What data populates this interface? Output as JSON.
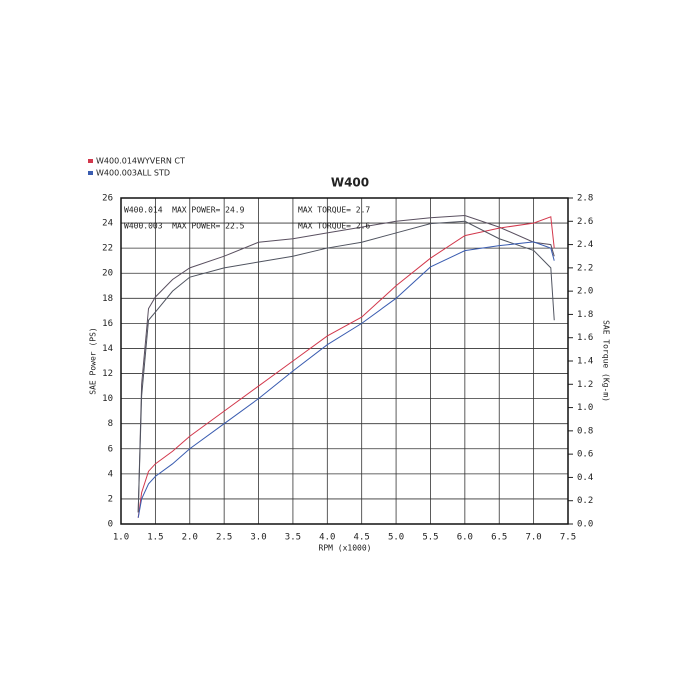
{
  "chart_data": {
    "type": "line",
    "title": "W400",
    "x_label": "RPM (x1000)",
    "y_label": "SAE Power (PS)",
    "y2_label": "SAE Torque (Kg-m)",
    "annotations": [
      "W400.014  MAX POWER= 24.9",
      "MAX TORQUE= 2.7",
      "W400.003  MAX POWER= 22.5",
      "MAX TORQUE= 2.6"
    ],
    "x": [
      1.25,
      1.3,
      1.4,
      1.5,
      1.75,
      2.0,
      2.5,
      3.0,
      3.5,
      4.0,
      4.5,
      5.0,
      5.5,
      6.0,
      6.5,
      7.0,
      7.25,
      7.3
    ],
    "series": [
      {
        "name": "W400.014",
        "label": "WYVERN CT",
        "color": "#d2384c",
        "torque_color": "#5a5060",
        "values": [
          0.5,
          2.5,
          4.2,
          4.8,
          5.8,
          7.0,
          9.0,
          11.0,
          13.0,
          15.0,
          16.5,
          19.0,
          21.2,
          23.0,
          23.6,
          24.0,
          24.5,
          22.0
        ],
        "y2_values": [
          0.1,
          1.2,
          1.85,
          1.95,
          2.1,
          2.2,
          2.3,
          2.42,
          2.45,
          2.5,
          2.55,
          2.6,
          2.63,
          2.65,
          2.55,
          2.42,
          2.4,
          2.3
        ]
      },
      {
        "name": "W400.003",
        "label": "ALL STD",
        "color": "#3a5cb0",
        "torque_color": "#505460",
        "values": [
          0.5,
          2.0,
          3.2,
          3.8,
          4.8,
          6.0,
          8.0,
          10.0,
          12.2,
          14.3,
          16.0,
          18.0,
          20.5,
          21.8,
          22.2,
          22.5,
          22.0,
          21.0
        ],
        "y2_values": [
          0.1,
          1.1,
          1.75,
          1.82,
          2.0,
          2.12,
          2.2,
          2.25,
          2.3,
          2.37,
          2.42,
          2.5,
          2.58,
          2.6,
          2.45,
          2.35,
          2.2,
          1.75
        ]
      }
    ],
    "xlim": [
      1.0,
      7.5
    ],
    "xticks": [
      {
        "value": 1.0,
        "label": "1.0"
      },
      1.5,
      {
        "value": 2.0,
        "label": "2.0"
      },
      2.5,
      {
        "value": 3.0,
        "label": "3.0"
      },
      3.5,
      {
        "value": 4.0,
        "label": "4.0"
      },
      4.5,
      {
        "value": 5.0,
        "label": "5.0"
      },
      5.5,
      {
        "value": 6.0,
        "label": "6.0"
      },
      6.5,
      {
        "value": 7.0,
        "label": "7.0"
      },
      7.5
    ],
    "ylim": [
      0,
      26
    ],
    "yticks": [
      0,
      2,
      4,
      6,
      8,
      10,
      12,
      14,
      16,
      18,
      20,
      22,
      24,
      26
    ],
    "y2lim": [
      0,
      2.8
    ],
    "y2ticks": [
      {
        "value": 0,
        "label": "0.0"
      },
      0.2,
      0.4,
      0.6,
      0.8,
      {
        "value": 1,
        "label": "1.0"
      },
      1.2,
      1.4,
      1.6,
      1.8,
      {
        "value": 2,
        "label": "2.0"
      },
      2.2,
      2.4,
      2.6,
      2.8
    ],
    "grid": true
  }
}
